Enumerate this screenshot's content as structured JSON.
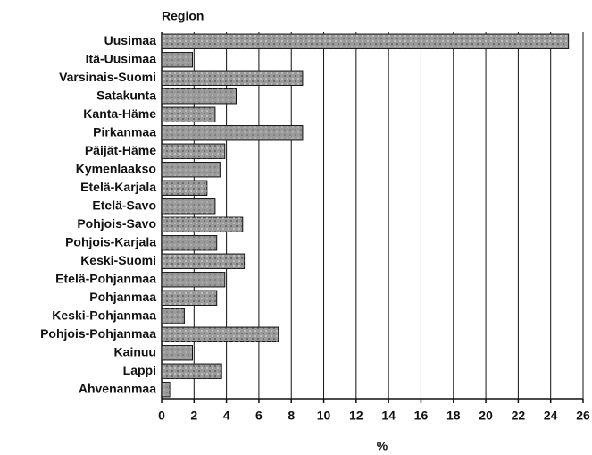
{
  "chart_data": {
    "type": "barh",
    "title": "Region",
    "xlabel": "%",
    "categories": [
      "Uusimaa",
      "Itä-Uusimaa",
      "Varsinais-Suomi",
      "Satakunta",
      "Kanta-Häme",
      "Pirkanmaa",
      "Päijät-Häme",
      "Kymenlaakso",
      "Etelä-Karjala",
      "Etelä-Savo",
      "Pohjois-Savo",
      "Pohjois-Karjala",
      "Keski-Suomi",
      "Etelä-Pohjanmaa",
      "Pohjanmaa",
      "Keski-Pohjanmaa",
      "Pohjois-Pohjanmaa",
      "Kainuu",
      "Lappi",
      "Ahvenanmaa"
    ],
    "values": [
      25.1,
      1.9,
      8.7,
      4.6,
      3.3,
      8.7,
      3.9,
      3.6,
      2.8,
      3.3,
      5.0,
      3.4,
      5.1,
      3.9,
      3.4,
      1.4,
      7.2,
      1.9,
      3.7,
      0.5
    ],
    "color": "#9a9a9a",
    "xlim": [
      0,
      26
    ],
    "xticks": [
      0,
      2,
      4,
      6,
      8,
      10,
      12,
      14,
      16,
      18,
      20,
      22,
      24,
      26
    ],
    "grid": true
  }
}
